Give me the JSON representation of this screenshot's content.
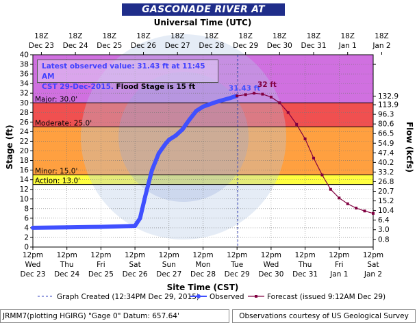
{
  "header": {
    "title": "GASCONADE RIVER AT JEROME",
    "top_axis_title": "Universal Time (UTC)"
  },
  "info_box": {
    "line1": "Latest observed value: 31.43 ft at 11:45 AM",
    "line2_a": "CST 29-Dec-2015.",
    "line2_b": " Flood Stage is 15 ft"
  },
  "footer": {
    "left": "JRMM7(plotting HGIRG) \"Gage 0\" Datum: 657.64'",
    "right": "Observations courtesy of US Geological Survey"
  },
  "colors": {
    "major": "#ee82ee",
    "major_band": "#d070e0",
    "moderate_band": "#f05050",
    "minor_band": "#ffa040",
    "action_band": "#ffff40",
    "below_band": "#ffffff",
    "observed": "#4050ff",
    "forecast": "#800040",
    "title_bg": "#1f2d8a"
  },
  "chart_data": {
    "type": "line",
    "title": "GASCONADE RIVER AT JEROME",
    "xlabel": "Site Time (CST)",
    "top_xlabel": "Universal Time (UTC)",
    "ylabel": "Stage (ft)",
    "y2label": "Flow (kcfs)",
    "ylim": [
      0,
      40
    ],
    "yticks": [
      0,
      2,
      4,
      6,
      8,
      10,
      12,
      14,
      16,
      18,
      20,
      22,
      24,
      26,
      28,
      30,
      32,
      34,
      36,
      38,
      40
    ],
    "y2_ticks": [
      {
        "stage": 38,
        "label": ""
      },
      {
        "stage": 31.4,
        "label": "132.9"
      },
      {
        "stage": 29.6,
        "label": "113.9"
      },
      {
        "stage": 27.6,
        "label": "96.3"
      },
      {
        "stage": 25.6,
        "label": "80.6"
      },
      {
        "stage": 23.6,
        "label": "66.5"
      },
      {
        "stage": 21.6,
        "label": "54.9"
      },
      {
        "stage": 19.6,
        "label": "47.4"
      },
      {
        "stage": 17.6,
        "label": "40.2"
      },
      {
        "stage": 15.6,
        "label": "33.2"
      },
      {
        "stage": 13.6,
        "label": "26.8"
      },
      {
        "stage": 11.6,
        "label": "20.7"
      },
      {
        "stage": 9.6,
        "label": "15.2"
      },
      {
        "stage": 7.6,
        "label": "10.4"
      },
      {
        "stage": 5.6,
        "label": "6.4"
      },
      {
        "stage": 3.6,
        "label": "3.0"
      },
      {
        "stage": 1.6,
        "label": "0.8"
      }
    ],
    "xlim": [
      "Dec 23 12pm",
      "Jan 2 12pm"
    ],
    "bottom_ticks": [
      {
        "top": "12pm",
        "mid": "Wed",
        "bot": "Dec 23"
      },
      {
        "top": "12pm",
        "mid": "Thu",
        "bot": "Dec 24"
      },
      {
        "top": "12pm",
        "mid": "Fri",
        "bot": "Dec 25"
      },
      {
        "top": "12pm",
        "mid": "Sat",
        "bot": "Dec 26"
      },
      {
        "top": "12pm",
        "mid": "Sun",
        "bot": "Dec 27"
      },
      {
        "top": "12pm",
        "mid": "Mon",
        "bot": "Dec 28"
      },
      {
        "top": "12pm",
        "mid": "Tue",
        "bot": "Dec 29"
      },
      {
        "top": "12pm",
        "mid": "Wed",
        "bot": "Dec 30"
      },
      {
        "top": "12pm",
        "mid": "Thu",
        "bot": "Dec 31"
      },
      {
        "top": "12pm",
        "mid": "Fri",
        "bot": "Jan 1"
      },
      {
        "top": "12pm",
        "mid": "Sat",
        "bot": "Jan 2"
      }
    ],
    "top_ticks": [
      {
        "top": "18Z",
        "bot": "Dec 23"
      },
      {
        "top": "18Z",
        "bot": "Dec 24"
      },
      {
        "top": "18Z",
        "bot": "Dec 25"
      },
      {
        "top": "18Z",
        "bot": "Dec 26"
      },
      {
        "top": "18Z",
        "bot": "Dec 27"
      },
      {
        "top": "18Z",
        "bot": "Dec 28"
      },
      {
        "top": "18Z",
        "bot": "Dec 29"
      },
      {
        "top": "18Z",
        "bot": "Dec 30"
      },
      {
        "top": "18Z",
        "bot": "Dec 31"
      },
      {
        "top": "18Z",
        "bot": "Jan 1"
      },
      {
        "top": "18Z",
        "bot": "Jan 2"
      }
    ],
    "flood_categories": [
      {
        "name": "Major: 30.0'",
        "stage": 30.0
      },
      {
        "name": "Moderate: 25.0'",
        "stage": 25.0
      },
      {
        "name": "Minor: 15.0'",
        "stage": 15.0
      },
      {
        "name": "Action: 13.0'",
        "stage": 13.0
      }
    ],
    "graph_created_day": 6.02,
    "series": [
      {
        "name": "Observed",
        "x_days": [
          0.0,
          1.0,
          2.0,
          3.0,
          3.15,
          3.3,
          3.5,
          3.7,
          3.9,
          4.0,
          4.2,
          4.4,
          4.6,
          4.8,
          5.0,
          5.2,
          5.4,
          5.6,
          5.8,
          5.98
        ],
        "values": [
          4.0,
          4.1,
          4.2,
          4.4,
          6.0,
          10.5,
          16.0,
          19.5,
          21.5,
          22.3,
          23.2,
          24.5,
          26.5,
          28.3,
          29.2,
          29.7,
          30.2,
          30.6,
          31.0,
          31.43
        ]
      },
      {
        "name": "Forecast (issued 9:12AM Dec 29)",
        "x_days": [
          6.0,
          6.25,
          6.5,
          6.75,
          7.0,
          7.25,
          7.5,
          7.75,
          8.0,
          8.25,
          8.5,
          8.75,
          9.0,
          9.25,
          9.5,
          9.75,
          10.0
        ],
        "values": [
          31.43,
          31.7,
          32.0,
          31.8,
          31.2,
          30.0,
          28.0,
          25.5,
          22.5,
          18.5,
          15.0,
          12.0,
          10.2,
          9.0,
          8.1,
          7.5,
          7.0
        ]
      }
    ],
    "annotations": [
      {
        "text": "31.43 ft",
        "x_days": 5.75,
        "y": 32.5
      },
      {
        "text": "32 ft",
        "x_days": 6.6,
        "y": 33.3
      }
    ],
    "legend": {
      "graph_created": "Graph Created (12:34PM Dec 29, 2015)",
      "observed": "Observed",
      "forecast": "Forecast (issued 9:12AM Dec 29)"
    }
  }
}
